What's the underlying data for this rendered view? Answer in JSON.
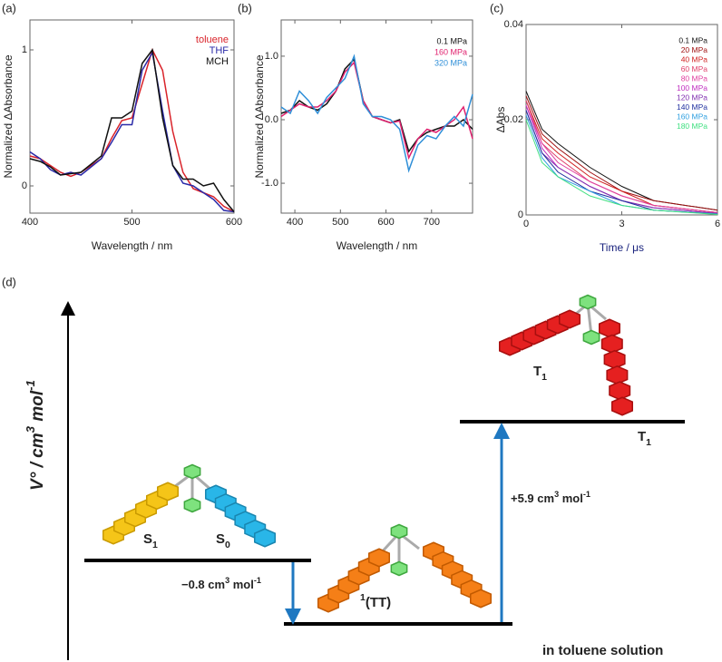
{
  "chart_data": [
    {
      "type": "line",
      "panel_label": "(a)",
      "x_label": "Wavelength / nm",
      "y_label": "Normalized ΔAbsorbance",
      "x": [
        400,
        410,
        420,
        430,
        440,
        450,
        460,
        470,
        480,
        490,
        500,
        510,
        520,
        530,
        540,
        550,
        560,
        570,
        580,
        590,
        600
      ],
      "series": [
        {
          "name": "toluene",
          "color": "#d9232a",
          "values": [
            0.22,
            0.2,
            0.15,
            0.1,
            0.07,
            0.1,
            0.15,
            0.2,
            0.35,
            0.48,
            0.5,
            0.75,
            1.0,
            0.85,
            0.4,
            0.1,
            -0.02,
            -0.05,
            -0.08,
            -0.15,
            -0.19
          ]
        },
        {
          "name": "THF",
          "color": "#2a2aa8",
          "values": [
            0.25,
            0.2,
            0.12,
            0.08,
            0.1,
            0.08,
            0.14,
            0.2,
            0.32,
            0.45,
            0.45,
            0.85,
            0.98,
            0.55,
            0.15,
            0.02,
            0.0,
            -0.05,
            -0.1,
            -0.18,
            -0.19
          ]
        },
        {
          "name": "MCH",
          "color": "#111111",
          "values": [
            0.2,
            0.18,
            0.14,
            0.08,
            0.09,
            0.1,
            0.16,
            0.22,
            0.5,
            0.5,
            0.55,
            0.9,
            1.0,
            0.5,
            0.15,
            0.05,
            0.05,
            0.0,
            0.02,
            -0.1,
            -0.19
          ]
        }
      ],
      "xlim": [
        400,
        600
      ],
      "xticks": [
        400,
        500,
        600
      ],
      "ylim": [
        -0.2,
        1.22
      ],
      "yticks": [
        0,
        1
      ]
    },
    {
      "type": "line",
      "panel_label": "(b)",
      "x_label": "Wavelength / nm",
      "y_label": "Normalized ΔAbsorbance",
      "x": [
        370,
        390,
        410,
        430,
        450,
        470,
        490,
        510,
        530,
        550,
        570,
        590,
        610,
        630,
        650,
        670,
        690,
        710,
        730,
        750,
        770,
        790
      ],
      "series": [
        {
          "name": "0.1 MPa",
          "color": "#111111",
          "values": [
            0.1,
            0.15,
            0.3,
            0.2,
            0.15,
            0.25,
            0.45,
            0.8,
            0.95,
            0.3,
            0.05,
            0.0,
            -0.05,
            0.0,
            -0.5,
            -0.3,
            -0.2,
            -0.15,
            -0.1,
            -0.1,
            0.0,
            -0.15
          ]
        },
        {
          "name": "160 MPa",
          "color": "#e0206e",
          "values": [
            0.05,
            0.15,
            0.25,
            0.2,
            0.2,
            0.3,
            0.45,
            0.75,
            0.9,
            0.3,
            0.05,
            0.0,
            -0.05,
            -0.02,
            -0.6,
            -0.3,
            -0.15,
            -0.2,
            -0.1,
            0.0,
            0.2,
            -0.3
          ]
        },
        {
          "name": "320 MPa",
          "color": "#2f8fd8",
          "values": [
            0.2,
            0.1,
            0.45,
            0.3,
            0.1,
            0.35,
            0.5,
            0.65,
            1.0,
            0.25,
            0.05,
            0.05,
            0.0,
            -0.15,
            -0.8,
            -0.4,
            -0.25,
            -0.3,
            -0.1,
            0.05,
            -0.1,
            0.4
          ]
        }
      ],
      "xlim": [
        370,
        790
      ],
      "xticks": [
        400,
        500,
        600,
        700
      ],
      "ylim": [
        -1.47,
        1.57
      ],
      "yticks": [
        {
          "value": -1,
          "label": "-1.0"
        },
        {
          "value": 0,
          "label": "0.0"
        },
        {
          "value": 1,
          "label": "1.0"
        }
      ]
    },
    {
      "type": "line",
      "panel_label": "(c)",
      "x_label": "Time / μs",
      "y_label": "ΔAbs",
      "x": [
        0,
        0.5,
        1,
        2,
        3,
        4,
        6
      ],
      "series": [
        {
          "name": "0.1 MPa",
          "color": "#111111",
          "values": [
            0.026,
            0.018,
            0.015,
            0.01,
            0.006,
            0.003,
            0.001
          ]
        },
        {
          "name": "20 MPa",
          "color": "#a01010",
          "values": [
            0.025,
            0.017,
            0.014,
            0.009,
            0.005,
            0.003,
            0.001
          ]
        },
        {
          "name": "40 MPa",
          "color": "#d02020",
          "values": [
            0.024,
            0.016,
            0.013,
            0.008,
            0.005,
            0.002,
            0.0005
          ]
        },
        {
          "name": "60 MPa",
          "color": "#e0406a",
          "values": [
            0.024,
            0.015,
            0.012,
            0.007,
            0.004,
            0.002,
            0.0005
          ]
        },
        {
          "name": "80 MPa",
          "color": "#e040a0",
          "values": [
            0.023,
            0.015,
            0.011,
            0.007,
            0.004,
            0.002,
            0.0005
          ]
        },
        {
          "name": "100 MPa",
          "color": "#c030c0",
          "values": [
            0.023,
            0.014,
            0.01,
            0.006,
            0.003,
            0.0015,
            0.0003
          ]
        },
        {
          "name": "120 MPa",
          "color": "#8030b0",
          "values": [
            0.022,
            0.013,
            0.01,
            0.006,
            0.003,
            0.0015,
            0.0003
          ]
        },
        {
          "name": "140 MPa",
          "color": "#2030a0",
          "values": [
            0.022,
            0.013,
            0.009,
            0.005,
            0.003,
            0.001,
            0.0002
          ]
        },
        {
          "name": "160 MPa",
          "color": "#30a0e0",
          "values": [
            0.021,
            0.012,
            0.008,
            0.005,
            0.002,
            0.001,
            0.0002
          ]
        },
        {
          "name": "180 MPa",
          "color": "#40e080",
          "values": [
            0.02,
            0.011,
            0.008,
            0.004,
            0.002,
            0.001,
            0.0001
          ]
        }
      ],
      "xlim": [
        0,
        6
      ],
      "xticks": [
        0,
        3,
        6
      ],
      "ylim": [
        0,
        0.04
      ],
      "yticks": [
        0,
        0.02,
        0.04
      ]
    }
  ],
  "diagram": {
    "panel_label": "(d)",
    "y_axis_label": {
      "symbol": "V°",
      "unit": " / cm",
      "unit_exp": "3",
      "unit2": " mol",
      "unit2_exp": "-1"
    },
    "states": [
      {
        "label": "S",
        "sub": "1"
      },
      {
        "label": "S",
        "sub": "0"
      },
      {
        "sup": "1",
        "label": "(TT)"
      },
      {
        "label": "T",
        "sub": "1"
      },
      {
        "label": "T",
        "sub": "1"
      }
    ],
    "transitions": [
      {
        "label": "−0.8 cm",
        "exp": "3",
        "label2": " mol",
        "exp2": "-1"
      },
      {
        "label": "+5.9 cm",
        "exp": "3",
        "label2": " mol",
        "exp2": "-1"
      }
    ],
    "note": "in toluene solution"
  }
}
